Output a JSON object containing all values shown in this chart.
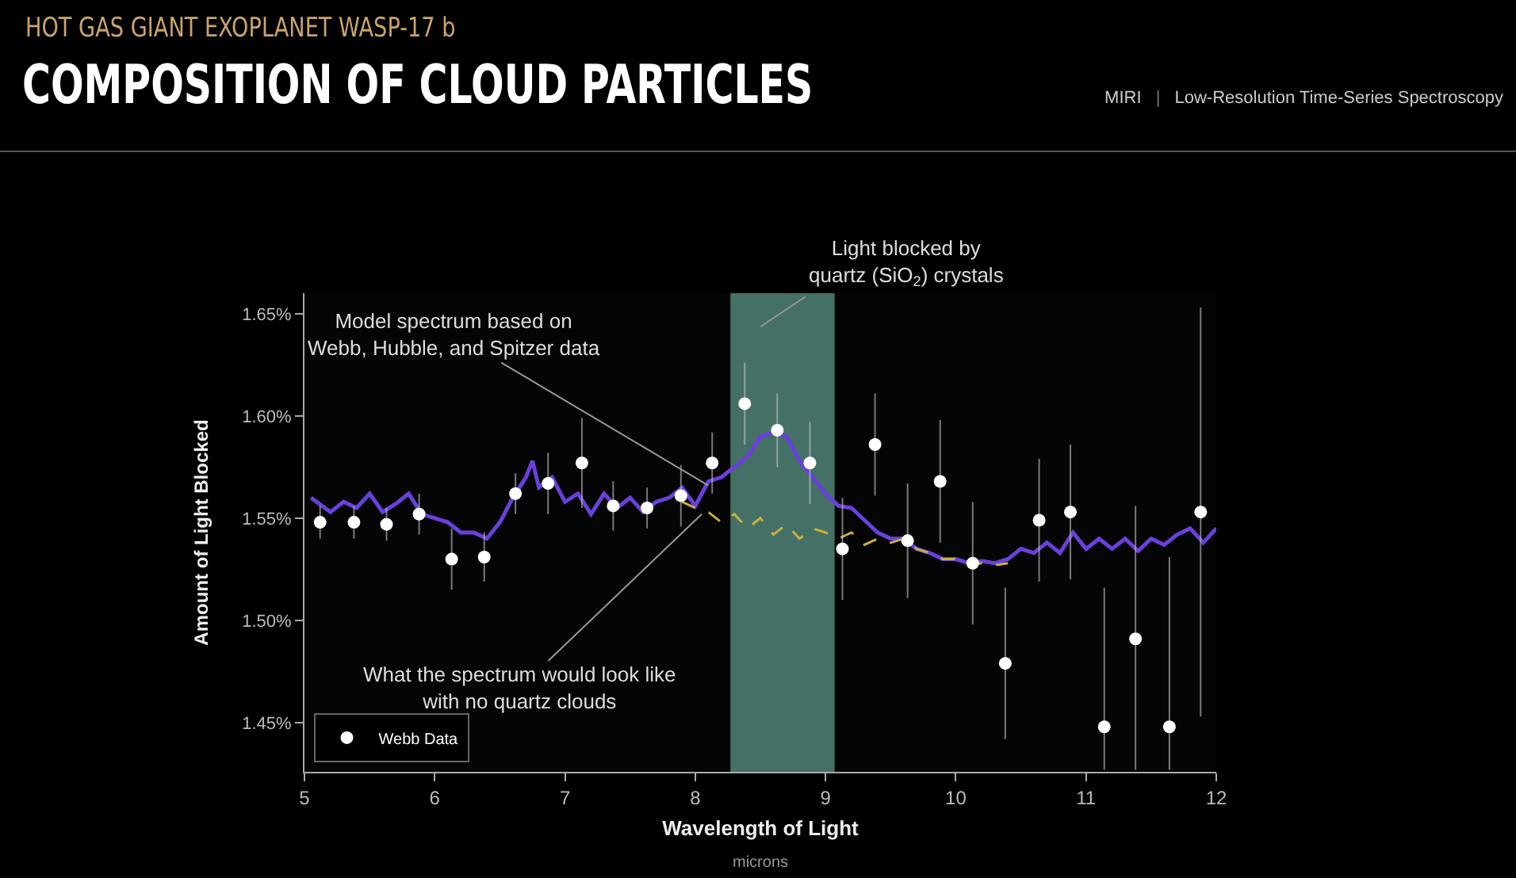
{
  "chart_data": {
    "type": "scatter",
    "subtitle": "HOT GAS GIANT EXOPLANET WASP-17 b",
    "title": "COMPOSITION OF CLOUD PARTICLES",
    "xlabel": "Wavelength of Light",
    "ylabel": "Amount of Light Blocked",
    "xlim": [
      5,
      12
    ],
    "xticks": [
      5,
      6,
      7,
      8,
      9,
      10,
      11,
      12
    ],
    "ylim": [
      1.426,
      1.66
    ],
    "yticks": [
      {
        "value": 1.45,
        "label": "1.45%"
      },
      {
        "value": 1.5,
        "label": "1.50%"
      },
      {
        "value": 1.55,
        "label": "1.55%"
      },
      {
        "value": 1.6,
        "label": "1.60%"
      },
      {
        "value": 1.65,
        "label": "1.65%"
      }
    ],
    "grid": false,
    "legend": "bottom left",
    "bands": [
      {
        "axis": "x",
        "from": 8.27,
        "to": 9.07,
        "color": "#5f9e90"
      }
    ],
    "annotations": [
      {
        "text": "Model spectrum based on\nWebb, Hubble, and Spitzer data",
        "x": 8.1,
        "y": 1.566
      },
      {
        "text": "What the spectrum would look like\nwith no quartz clouds",
        "x": 8.05,
        "y": 1.552
      },
      "Light blocked by\nquartz (SiO$_{2}$) crystals",
      "MIRI | Low-Resolution Time-Series Spectroscopy",
      "microns"
    ],
    "series": [
      {
        "type": "line",
        "color": "#6a40dc",
        "line_style": "solid",
        "x": [
          5.05,
          5.2,
          5.3,
          5.4,
          5.5,
          5.6,
          5.7,
          5.8,
          5.9,
          6.0,
          6.1,
          6.2,
          6.3,
          6.4,
          6.5,
          6.6,
          6.7,
          6.75,
          6.8,
          6.9,
          7.0,
          7.1,
          7.2,
          7.3,
          7.4,
          7.5,
          7.6,
          7.7,
          7.8,
          7.9,
          8.0,
          8.1,
          8.2,
          8.3,
          8.4,
          8.5,
          8.6,
          8.7,
          8.8,
          8.9,
          9.0,
          9.1,
          9.2,
          9.3,
          9.4,
          9.5,
          9.6,
          9.7,
          9.8,
          9.9,
          10.0,
          10.1,
          10.2,
          10.3,
          10.4,
          10.5,
          10.6,
          10.7,
          10.8,
          10.9,
          11.0,
          11.1,
          11.2,
          11.3,
          11.4,
          11.5,
          11.6,
          11.7,
          11.8,
          11.9,
          12.0
        ],
        "values": [
          1.56,
          1.553,
          1.558,
          1.555,
          1.562,
          1.553,
          1.557,
          1.562,
          1.552,
          1.55,
          1.548,
          1.543,
          1.543,
          1.54,
          1.548,
          1.56,
          1.57,
          1.578,
          1.565,
          1.57,
          1.558,
          1.562,
          1.552,
          1.562,
          1.555,
          1.56,
          1.553,
          1.558,
          1.56,
          1.565,
          1.556,
          1.568,
          1.57,
          1.575,
          1.58,
          1.59,
          1.592,
          1.59,
          1.578,
          1.57,
          1.562,
          1.556,
          1.555,
          1.549,
          1.543,
          1.54,
          1.54,
          1.535,
          1.533,
          1.53,
          1.53,
          1.528,
          1.529,
          1.528,
          1.53,
          1.535,
          1.533,
          1.538,
          1.533,
          1.543,
          1.535,
          1.54,
          1.535,
          1.54,
          1.534,
          1.54,
          1.537,
          1.542,
          1.545,
          1.538,
          1.545
        ]
      },
      {
        "type": "line",
        "color": "#c8b040",
        "line_style": "dashed",
        "x": [
          7.9,
          8.0,
          8.1,
          8.2,
          8.3,
          8.4,
          8.5,
          8.6,
          8.7,
          8.8,
          8.9,
          9.0,
          9.1,
          9.2,
          9.3,
          9.4,
          9.5,
          9.6,
          9.7,
          9.8,
          9.9,
          10.0,
          10.1,
          10.2,
          10.3,
          10.4
        ],
        "values": [
          1.558,
          1.555,
          1.553,
          1.548,
          1.552,
          1.545,
          1.55,
          1.542,
          1.547,
          1.54,
          1.545,
          1.543,
          1.54,
          1.543,
          1.537,
          1.54,
          1.538,
          1.54,
          1.535,
          1.533,
          1.53,
          1.53,
          1.527,
          1.528,
          1.527,
          1.528
        ]
      },
      {
        "name": "Webb Data",
        "color": "#ffffff",
        "marker": "circle",
        "x": [
          5.12,
          5.38,
          5.63,
          5.88,
          6.13,
          6.38,
          6.62,
          6.87,
          7.13,
          7.37,
          7.63,
          7.89,
          8.13,
          8.38,
          8.63,
          8.88,
          9.13,
          9.38,
          9.63,
          9.88,
          10.13,
          10.38,
          10.64,
          10.88,
          11.14,
          11.38,
          11.64,
          11.88
        ],
        "values": [
          1.548,
          1.548,
          1.547,
          1.552,
          1.53,
          1.531,
          1.562,
          1.567,
          1.577,
          1.556,
          1.555,
          1.561,
          1.577,
          1.606,
          1.593,
          1.577,
          1.535,
          1.586,
          1.539,
          1.568,
          1.528,
          1.479,
          1.549,
          1.553,
          1.448,
          1.491,
          1.448,
          1.553
        ],
        "errors": [
          0.008,
          0.008,
          0.008,
          0.01,
          0.015,
          0.012,
          0.01,
          0.015,
          0.022,
          0.012,
          0.01,
          0.015,
          0.015,
          0.02,
          0.018,
          0.02,
          0.025,
          0.025,
          0.028,
          0.03,
          0.03,
          0.037,
          0.03,
          0.033,
          [
            1.427,
            1.516
          ],
          [
            1.427,
            1.556
          ],
          [
            1.427,
            1.531
          ],
          0.1
        ]
      }
    ]
  }
}
